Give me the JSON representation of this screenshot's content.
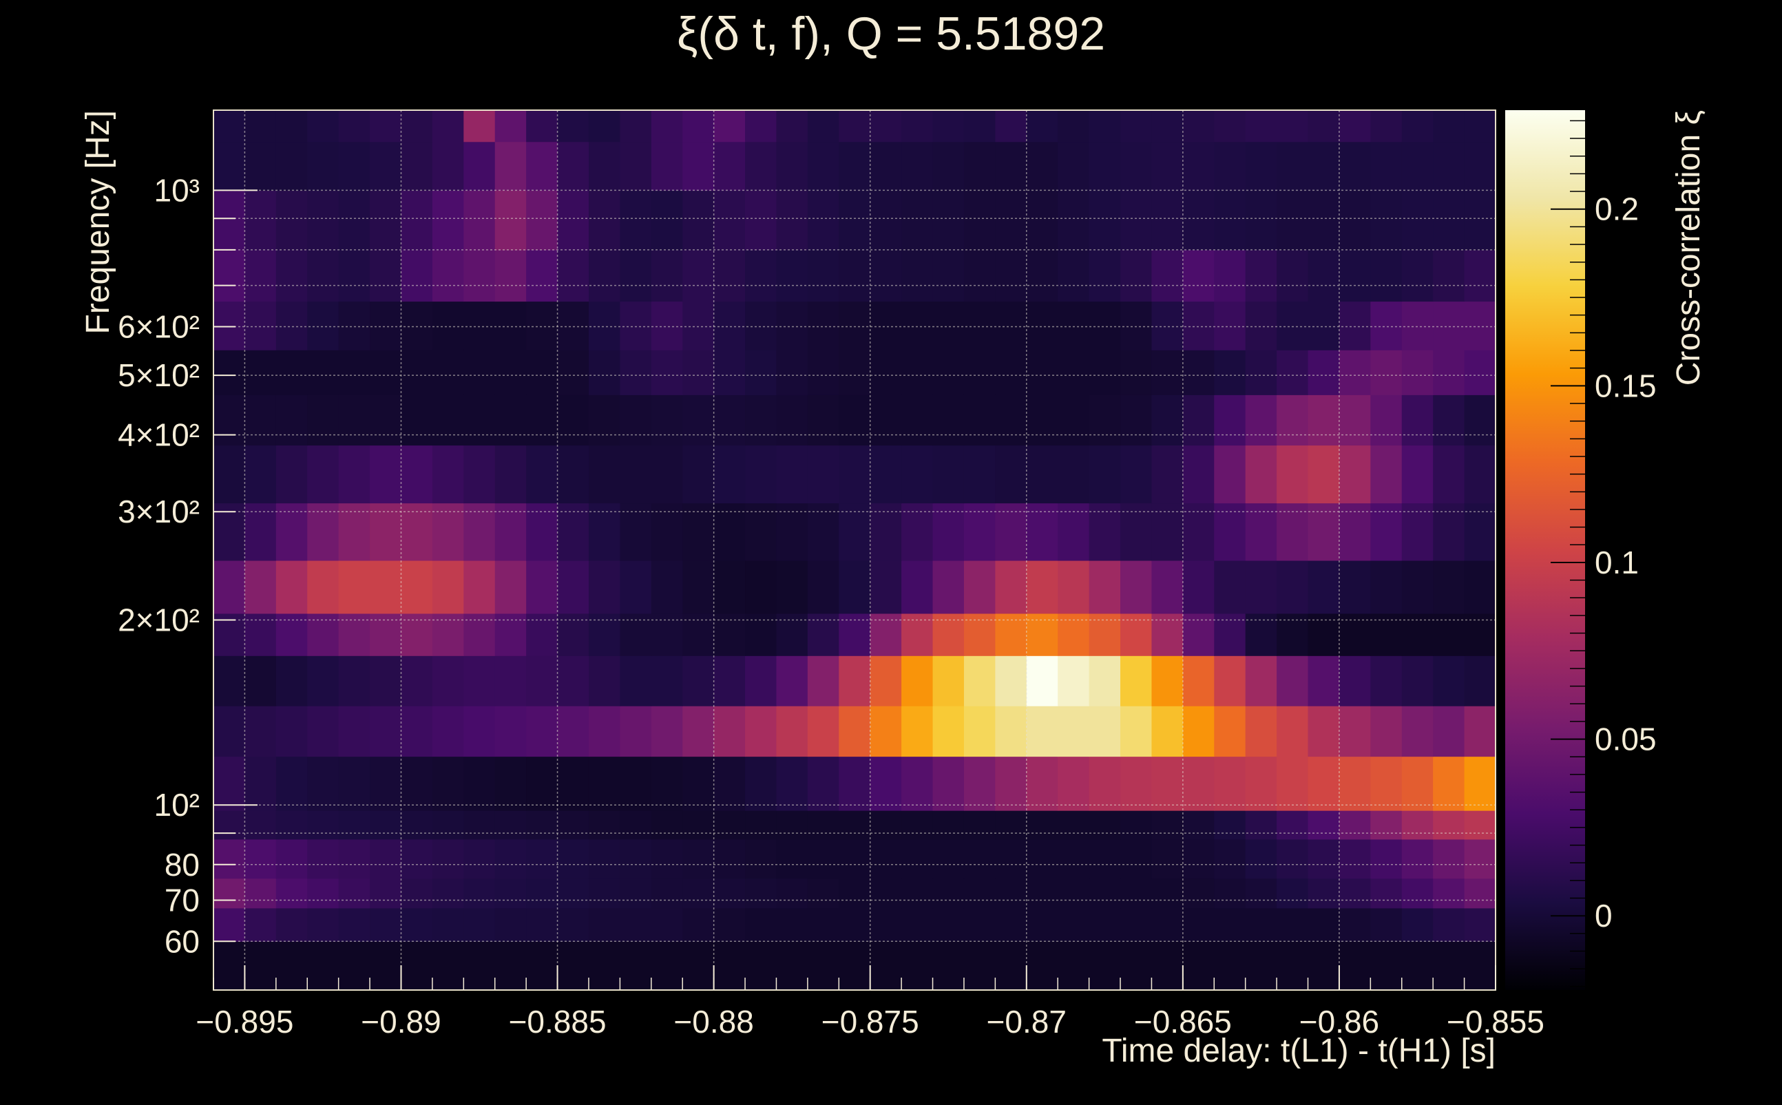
{
  "chart_data": {
    "type": "heatmap",
    "title": "ξ(δ t, f), Q = 5.51892",
    "xlabel": "Time delay: t(L1) - t(H1) [s]",
    "ylabel": "Frequency [Hz]",
    "zlabel": "Cross-correlation ξ",
    "x_scale": "linear",
    "y_scale": "log",
    "xlim": [
      -0.896,
      -0.855
    ],
    "ylim": [
      50,
      1350
    ],
    "zlim": [
      -0.021,
      0.228
    ],
    "colormap": "inferno",
    "grid": true,
    "legend": "colorbar-right",
    "x_ticks": [
      {
        "value": -0.895,
        "label": "−0.895"
      },
      {
        "value": -0.89,
        "label": "−0.89"
      },
      {
        "value": -0.885,
        "label": "−0.885"
      },
      {
        "value": -0.88,
        "label": "−0.88"
      },
      {
        "value": -0.875,
        "label": "−0.875"
      },
      {
        "value": -0.87,
        "label": "−0.87"
      },
      {
        "value": -0.865,
        "label": "−0.865"
      },
      {
        "value": -0.86,
        "label": "−0.86"
      },
      {
        "value": -0.855,
        "label": "−0.855"
      }
    ],
    "y_ticks": [
      {
        "value": 60,
        "label": "60"
      },
      {
        "value": 70,
        "label": "70"
      },
      {
        "value": 80,
        "label": "80"
      },
      {
        "value": 100,
        "label": "10²"
      },
      {
        "value": 200,
        "label": "2×10²"
      },
      {
        "value": 300,
        "label": "3×10²"
      },
      {
        "value": 400,
        "label": "4×10²"
      },
      {
        "value": 500,
        "label": "5×10²"
      },
      {
        "value": 600,
        "label": "6×10²"
      },
      {
        "value": 1000,
        "label": "10³"
      }
    ],
    "z_ticks": [
      {
        "value": 0,
        "label": "0"
      },
      {
        "value": 0.05,
        "label": "0.05"
      },
      {
        "value": 0.1,
        "label": "0.1"
      },
      {
        "value": 0.15,
        "label": "0.15"
      },
      {
        "value": 0.2,
        "label": "0.2"
      }
    ],
    "x_edges": [
      -0.896,
      -0.895,
      -0.894,
      -0.893,
      -0.892,
      -0.891,
      -0.89,
      -0.889,
      -0.888,
      -0.887,
      -0.886,
      -0.885,
      -0.884,
      -0.883,
      -0.882,
      -0.881,
      -0.88,
      -0.879,
      -0.878,
      -0.877,
      -0.876,
      -0.875,
      -0.874,
      -0.873,
      -0.872,
      -0.871,
      -0.87,
      -0.869,
      -0.868,
      -0.867,
      -0.866,
      -0.865,
      -0.864,
      -0.863,
      -0.862,
      -0.861,
      -0.86,
      -0.859,
      -0.858,
      -0.857,
      -0.856,
      -0.855
    ],
    "bands": [
      {
        "f_low": 50,
        "f_high": 60,
        "values": [
          -0.008,
          -0.008,
          -0.008,
          -0.008,
          -0.008,
          -0.008,
          -0.008,
          -0.008,
          -0.008,
          -0.008,
          -0.008,
          -0.008,
          -0.008,
          -0.008,
          -0.008,
          -0.008,
          -0.008,
          -0.008,
          -0.008,
          -0.008,
          -0.008,
          -0.008,
          -0.008,
          -0.008,
          -0.008,
          -0.008,
          -0.008,
          -0.008,
          -0.008,
          -0.008,
          -0.008,
          -0.008,
          -0.008,
          -0.008,
          -0.008,
          -0.008,
          -0.008,
          -0.008,
          -0.008,
          -0.008,
          -0.008
        ]
      },
      {
        "f_low": 60,
        "f_high": 68,
        "values": [
          0.025,
          0.015,
          0.01,
          0.008,
          0.006,
          0.005,
          0.004,
          0.003,
          0.003,
          0.002,
          0.002,
          0.001,
          0.0,
          0.0,
          0.0,
          -0.002,
          -0.003,
          -0.004,
          -0.004,
          -0.004,
          -0.004,
          -0.004,
          -0.004,
          -0.004,
          -0.004,
          -0.004,
          -0.004,
          -0.004,
          -0.004,
          -0.004,
          -0.004,
          -0.004,
          -0.004,
          -0.004,
          -0.004,
          -0.004,
          -0.002,
          0.0,
          0.004,
          0.008,
          0.01
        ]
      },
      {
        "f_low": 68,
        "f_high": 76,
        "values": [
          0.05,
          0.04,
          0.03,
          0.025,
          0.02,
          0.015,
          0.01,
          0.008,
          0.006,
          0.005,
          0.004,
          0.003,
          0.002,
          0.001,
          0.0,
          0.0,
          0.0,
          -0.001,
          -0.002,
          -0.003,
          -0.004,
          -0.004,
          -0.004,
          -0.004,
          -0.004,
          -0.004,
          -0.004,
          -0.004,
          -0.004,
          -0.004,
          -0.004,
          -0.003,
          -0.002,
          0.0,
          0.004,
          0.008,
          0.012,
          0.018,
          0.025,
          0.035,
          0.045
        ]
      },
      {
        "f_low": 76,
        "f_high": 88,
        "values": [
          0.035,
          0.03,
          0.025,
          0.02,
          0.018,
          0.015,
          0.012,
          0.01,
          0.008,
          0.006,
          0.005,
          0.003,
          0.002,
          0.001,
          0.0,
          -0.001,
          -0.002,
          -0.003,
          -0.004,
          -0.004,
          -0.004,
          -0.004,
          -0.004,
          -0.004,
          -0.004,
          -0.004,
          -0.004,
          -0.004,
          -0.004,
          -0.004,
          -0.003,
          -0.002,
          0.0,
          0.004,
          0.008,
          0.012,
          0.018,
          0.025,
          0.035,
          0.045,
          0.055
        ]
      },
      {
        "f_low": 88,
        "f_high": 98,
        "values": [
          0.01,
          0.008,
          0.006,
          0.005,
          0.004,
          0.003,
          0.002,
          0.001,
          0.0,
          0.0,
          -0.001,
          -0.002,
          -0.003,
          -0.004,
          -0.005,
          -0.005,
          -0.005,
          -0.005,
          -0.005,
          -0.005,
          -0.005,
          -0.005,
          -0.005,
          -0.005,
          -0.005,
          -0.005,
          -0.005,
          -0.005,
          -0.005,
          -0.004,
          -0.003,
          -0.001,
          0.003,
          0.01,
          0.02,
          0.03,
          0.045,
          0.06,
          0.075,
          0.085,
          0.09
        ]
      },
      {
        "f_low": 98,
        "f_high": 120,
        "values": [
          0.015,
          0.008,
          0.004,
          0.002,
          0.001,
          0.0,
          -0.002,
          -0.003,
          -0.004,
          -0.005,
          -0.006,
          -0.006,
          -0.006,
          -0.006,
          -0.005,
          -0.004,
          -0.002,
          0.002,
          0.006,
          0.012,
          0.02,
          0.028,
          0.035,
          0.045,
          0.055,
          0.065,
          0.075,
          0.08,
          0.085,
          0.088,
          0.09,
          0.09,
          0.092,
          0.095,
          0.1,
          0.105,
          0.11,
          0.115,
          0.12,
          0.135,
          0.15
        ]
      },
      {
        "f_low": 120,
        "f_high": 145,
        "values": [
          0.008,
          0.01,
          0.012,
          0.015,
          0.018,
          0.02,
          0.022,
          0.025,
          0.028,
          0.03,
          0.032,
          0.036,
          0.04,
          0.045,
          0.05,
          0.06,
          0.07,
          0.08,
          0.09,
          0.1,
          0.12,
          0.14,
          0.16,
          0.175,
          0.185,
          0.195,
          0.2,
          0.2,
          0.2,
          0.19,
          0.17,
          0.15,
          0.13,
          0.11,
          0.1,
          0.085,
          0.075,
          0.065,
          0.055,
          0.05,
          0.065
        ]
      },
      {
        "f_low": 145,
        "f_high": 175,
        "values": [
          0.0,
          -0.002,
          0.002,
          0.005,
          0.008,
          0.01,
          0.015,
          0.018,
          0.02,
          0.02,
          0.018,
          0.015,
          0.01,
          0.005,
          0.005,
          0.008,
          0.012,
          0.02,
          0.035,
          0.06,
          0.09,
          0.12,
          0.15,
          0.17,
          0.19,
          0.205,
          0.228,
          0.215,
          0.205,
          0.175,
          0.15,
          0.125,
          0.1,
          0.075,
          0.05,
          0.035,
          0.02,
          0.012,
          0.008,
          0.004,
          0.002
        ]
      },
      {
        "f_low": 175,
        "f_high": 205,
        "values": [
          0.015,
          0.02,
          0.03,
          0.04,
          0.05,
          0.055,
          0.06,
          0.055,
          0.045,
          0.035,
          0.02,
          0.01,
          0.005,
          0.0,
          0.0,
          -0.002,
          -0.003,
          -0.004,
          0.0,
          0.01,
          0.025,
          0.06,
          0.09,
          0.11,
          0.12,
          0.135,
          0.14,
          0.13,
          0.12,
          0.105,
          0.075,
          0.04,
          0.02,
          0.0,
          -0.005,
          -0.008,
          -0.008,
          -0.008,
          -0.008,
          -0.008,
          -0.008
        ]
      },
      {
        "f_low": 205,
        "f_high": 250,
        "values": [
          0.04,
          0.06,
          0.08,
          0.095,
          0.1,
          0.1,
          0.1,
          0.095,
          0.08,
          0.06,
          0.035,
          0.02,
          0.01,
          0.005,
          0.0,
          -0.003,
          -0.005,
          -0.006,
          -0.005,
          -0.002,
          0.003,
          0.01,
          0.025,
          0.045,
          0.065,
          0.085,
          0.095,
          0.09,
          0.075,
          0.055,
          0.04,
          0.02,
          0.01,
          0.01,
          0.008,
          0.005,
          0.002,
          0.0,
          -0.002,
          -0.003,
          -0.004
        ]
      },
      {
        "f_low": 250,
        "f_high": 310,
        "values": [
          0.01,
          0.02,
          0.035,
          0.05,
          0.06,
          0.065,
          0.065,
          0.06,
          0.05,
          0.04,
          0.025,
          0.012,
          0.005,
          0.0,
          -0.002,
          -0.003,
          -0.004,
          -0.003,
          -0.002,
          0.0,
          0.005,
          0.01,
          0.018,
          0.025,
          0.03,
          0.035,
          0.03,
          0.025,
          0.015,
          0.01,
          0.01,
          0.015,
          0.025,
          0.035,
          0.045,
          0.05,
          0.04,
          0.03,
          0.02,
          0.01,
          0.005
        ]
      },
      {
        "f_low": 310,
        "f_high": 385,
        "values": [
          0.002,
          0.005,
          0.01,
          0.015,
          0.02,
          0.025,
          0.025,
          0.02,
          0.015,
          0.01,
          0.005,
          0.002,
          0.0,
          0.0,
          0.0,
          0.002,
          0.004,
          0.005,
          0.006,
          0.006,
          0.005,
          0.004,
          0.004,
          0.003,
          0.003,
          0.002,
          0.002,
          0.002,
          0.003,
          0.005,
          0.01,
          0.02,
          0.045,
          0.07,
          0.085,
          0.09,
          0.075,
          0.05,
          0.03,
          0.015,
          0.008
        ]
      },
      {
        "f_low": 385,
        "f_high": 465,
        "values": [
          -0.002,
          -0.002,
          -0.002,
          -0.003,
          -0.003,
          -0.003,
          -0.004,
          -0.004,
          -0.004,
          -0.004,
          -0.004,
          -0.004,
          -0.003,
          -0.002,
          -0.001,
          0.0,
          0.0,
          -0.001,
          -0.002,
          -0.003,
          -0.004,
          -0.004,
          -0.004,
          -0.004,
          -0.004,
          -0.004,
          -0.004,
          -0.004,
          -0.003,
          -0.002,
          0.002,
          0.01,
          0.025,
          0.04,
          0.055,
          0.06,
          0.055,
          0.04,
          0.02,
          0.008,
          0.002
        ]
      },
      {
        "f_low": 465,
        "f_high": 550,
        "values": [
          -0.004,
          -0.004,
          -0.004,
          -0.004,
          -0.004,
          -0.004,
          -0.004,
          -0.004,
          -0.004,
          -0.004,
          -0.004,
          -0.003,
          0.002,
          0.008,
          0.012,
          0.01,
          0.006,
          0.003,
          0.0,
          -0.002,
          -0.003,
          -0.004,
          -0.004,
          -0.004,
          -0.004,
          -0.004,
          -0.004,
          -0.004,
          -0.004,
          -0.003,
          -0.002,
          0.0,
          0.003,
          0.008,
          0.015,
          0.025,
          0.04,
          0.045,
          0.04,
          0.035,
          0.03
        ]
      },
      {
        "f_low": 550,
        "f_high": 660,
        "values": [
          0.02,
          0.015,
          0.008,
          0.003,
          0.0,
          -0.002,
          -0.003,
          -0.004,
          -0.004,
          -0.004,
          -0.003,
          -0.002,
          0.004,
          0.012,
          0.018,
          0.012,
          0.006,
          0.002,
          0.0,
          -0.002,
          -0.003,
          -0.004,
          -0.004,
          -0.004,
          -0.004,
          -0.004,
          -0.004,
          -0.004,
          -0.004,
          -0.002,
          0.006,
          0.015,
          0.02,
          0.01,
          0.005,
          0.005,
          0.015,
          0.03,
          0.035,
          0.035,
          0.035
        ]
      },
      {
        "f_low": 660,
        "f_high": 800,
        "values": [
          0.03,
          0.02,
          0.012,
          0.008,
          0.006,
          0.01,
          0.025,
          0.035,
          0.04,
          0.045,
          0.03,
          0.015,
          0.008,
          0.005,
          0.008,
          0.012,
          0.01,
          0.006,
          0.004,
          0.003,
          0.002,
          0.002,
          0.001,
          0.001,
          0.0,
          0.0,
          0.0,
          0.002,
          0.005,
          0.01,
          0.02,
          0.03,
          0.025,
          0.015,
          0.008,
          0.005,
          0.004,
          0.004,
          0.006,
          0.01,
          0.015
        ]
      },
      {
        "f_low": 800,
        "f_high": 1000,
        "values": [
          0.025,
          0.015,
          0.01,
          0.008,
          0.006,
          0.01,
          0.02,
          0.03,
          0.04,
          0.06,
          0.045,
          0.02,
          0.01,
          0.005,
          0.004,
          0.008,
          0.012,
          0.015,
          0.01,
          0.006,
          0.003,
          0.002,
          0.001,
          0.001,
          0.0,
          0.0,
          0.0,
          0.002,
          0.004,
          0.006,
          0.006,
          0.005,
          0.004,
          0.003,
          0.002,
          0.002,
          0.002,
          0.003,
          0.004,
          0.004,
          0.004
        ]
      },
      {
        "f_low": 1000,
        "f_high": 1200,
        "values": [
          0.004,
          0.002,
          0.002,
          0.003,
          0.004,
          0.006,
          0.01,
          0.015,
          0.025,
          0.05,
          0.035,
          0.015,
          0.008,
          0.01,
          0.02,
          0.025,
          0.02,
          0.012,
          0.008,
          0.005,
          0.003,
          0.002,
          0.002,
          0.001,
          0.0,
          0.0,
          0.0,
          0.002,
          0.004,
          0.005,
          0.006,
          0.006,
          0.005,
          0.004,
          0.003,
          0.003,
          0.003,
          0.004,
          0.004,
          0.004,
          0.004
        ]
      },
      {
        "f_low": 1200,
        "f_high": 1350,
        "values": [
          0.004,
          0.002,
          0.002,
          0.005,
          0.008,
          0.012,
          0.01,
          0.015,
          0.07,
          0.04,
          0.015,
          0.006,
          0.004,
          0.01,
          0.02,
          0.025,
          0.035,
          0.02,
          0.01,
          0.005,
          0.01,
          0.01,
          0.008,
          0.006,
          0.005,
          0.012,
          0.004,
          0.002,
          0.004,
          0.006,
          0.006,
          0.008,
          0.01,
          0.012,
          0.012,
          0.01,
          0.015,
          0.01,
          0.006,
          0.004,
          0.004
        ]
      }
    ]
  }
}
